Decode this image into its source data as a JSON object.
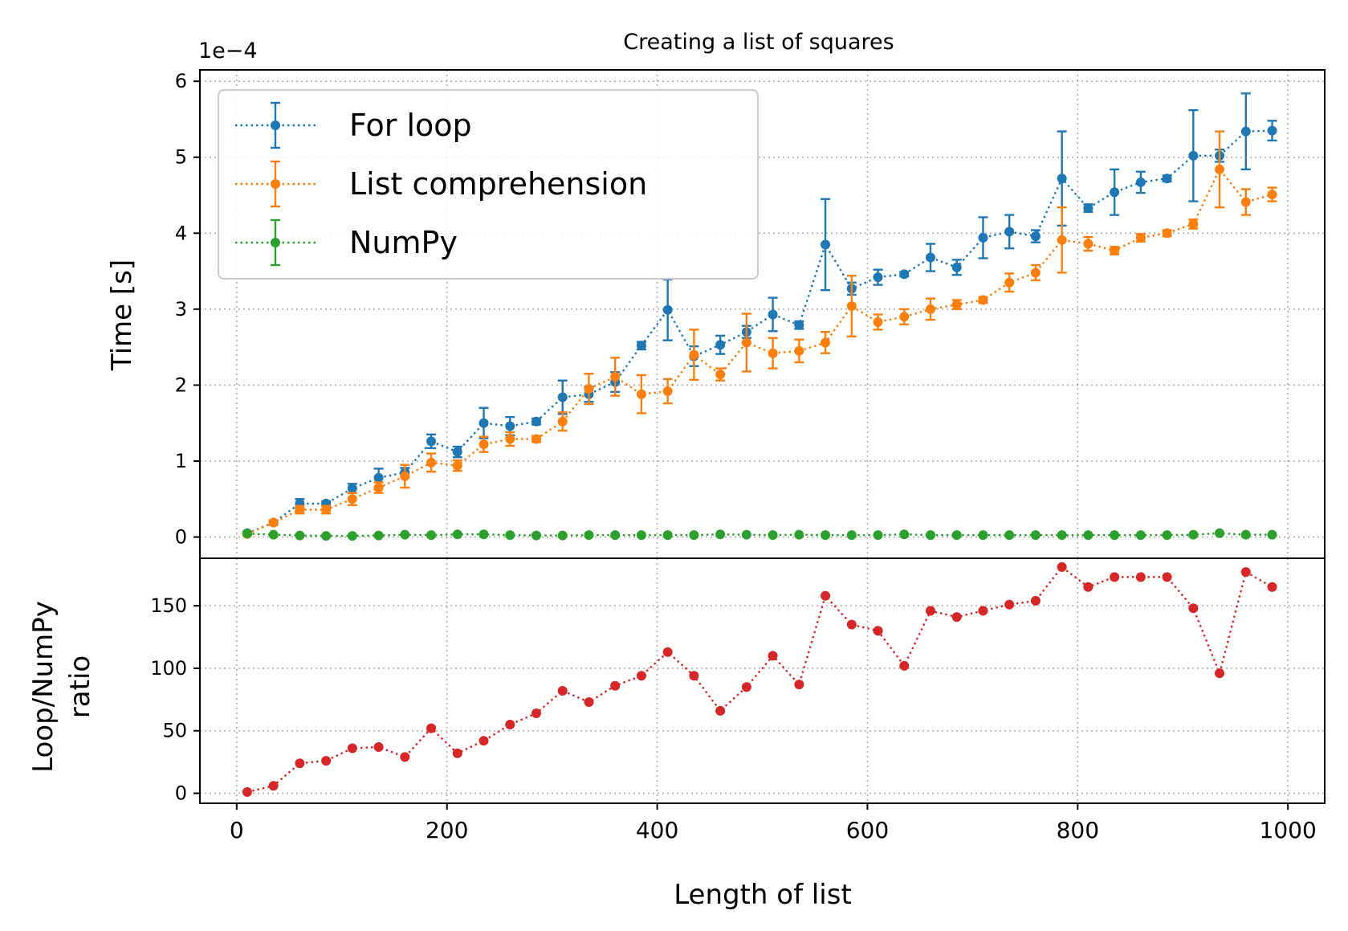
{
  "chart_data": [
    {
      "type": "line",
      "title": "Creating a list of squares",
      "ylabel": "Time [s]",
      "y_offset_label": "1e−4",
      "y_scale_exponent": -4,
      "xlim": [
        -35,
        1035
      ],
      "ylim": [
        -0.28,
        6.15
      ],
      "grid": true,
      "linestyle": "dotted",
      "legend_placement": "top-left",
      "x": [
        10,
        35,
        60,
        85,
        110,
        135,
        160,
        185,
        210,
        235,
        260,
        285,
        310,
        335,
        360,
        385,
        410,
        435,
        460,
        485,
        510,
        535,
        560,
        585,
        610,
        635,
        660,
        685,
        710,
        735,
        760,
        785,
        810,
        835,
        860,
        885,
        910,
        935,
        960,
        985
      ],
      "yticks": [
        "0",
        "1",
        "2",
        "3",
        "4",
        "5",
        "6"
      ],
      "series": [
        {
          "name": "For loop",
          "color": "#1f77b4",
          "values": [
            0.05,
            0.19,
            0.44,
            0.44,
            0.64,
            0.78,
            0.85,
            1.26,
            1.12,
            1.5,
            1.46,
            1.52,
            1.84,
            1.88,
            2.04,
            2.52,
            2.99,
            2.38,
            2.53,
            2.7,
            2.93,
            2.79,
            3.85,
            3.27,
            3.42,
            3.46,
            3.68,
            3.55,
            3.94,
            4.02,
            3.96,
            4.72,
            4.33,
            4.54,
            4.67,
            4.72,
            5.02,
            5.02,
            5.34,
            5.35
          ],
          "errors": [
            0.02,
            0.03,
            0.06,
            0.03,
            0.06,
            0.12,
            0.06,
            0.09,
            0.07,
            0.2,
            0.12,
            0.04,
            0.22,
            0.1,
            0.13,
            0.05,
            0.4,
            0.13,
            0.12,
            0.08,
            0.22,
            0.05,
            0.6,
            0.08,
            0.1,
            0.03,
            0.18,
            0.1,
            0.27,
            0.22,
            0.08,
            0.62,
            0.05,
            0.3,
            0.14,
            0.04,
            0.6,
            0.08,
            0.5,
            0.13
          ]
        },
        {
          "name": "List comprehension",
          "color": "#ff7f0e",
          "values": [
            0.04,
            0.19,
            0.36,
            0.36,
            0.5,
            0.65,
            0.8,
            0.98,
            0.94,
            1.22,
            1.29,
            1.29,
            1.52,
            1.95,
            2.11,
            1.88,
            1.92,
            2.4,
            2.14,
            2.56,
            2.42,
            2.45,
            2.56,
            3.04,
            2.83,
            2.9,
            3.0,
            3.06,
            3.12,
            3.35,
            3.48,
            3.91,
            3.86,
            3.77,
            3.94,
            4.0,
            4.12,
            4.84,
            4.41,
            4.51
          ],
          "errors": [
            0.02,
            0.03,
            0.05,
            0.05,
            0.08,
            0.07,
            0.15,
            0.12,
            0.07,
            0.1,
            0.09,
            0.04,
            0.12,
            0.2,
            0.25,
            0.25,
            0.16,
            0.33,
            0.08,
            0.38,
            0.2,
            0.15,
            0.14,
            0.4,
            0.1,
            0.1,
            0.14,
            0.06,
            0.04,
            0.12,
            0.1,
            0.43,
            0.09,
            0.05,
            0.05,
            0.04,
            0.06,
            0.5,
            0.17,
            0.09
          ]
        },
        {
          "name": "NumPy",
          "color": "#2ca02c",
          "values": [
            0.045,
            0.03,
            0.02,
            0.015,
            0.015,
            0.02,
            0.03,
            0.025,
            0.035,
            0.035,
            0.025,
            0.02,
            0.02,
            0.025,
            0.025,
            0.025,
            0.025,
            0.025,
            0.035,
            0.03,
            0.025,
            0.03,
            0.025,
            0.025,
            0.025,
            0.035,
            0.025,
            0.025,
            0.025,
            0.025,
            0.025,
            0.025,
            0.025,
            0.025,
            0.025,
            0.025,
            0.03,
            0.05,
            0.03,
            0.03
          ],
          "errors": [
            0.01,
            0.005,
            0.005,
            0.005,
            0.005,
            0.005,
            0.005,
            0.005,
            0.005,
            0.005,
            0.005,
            0.005,
            0.005,
            0.005,
            0.005,
            0.005,
            0.005,
            0.005,
            0.005,
            0.005,
            0.005,
            0.005,
            0.005,
            0.005,
            0.005,
            0.005,
            0.005,
            0.005,
            0.005,
            0.005,
            0.005,
            0.005,
            0.005,
            0.005,
            0.005,
            0.005,
            0.005,
            0.01,
            0.005,
            0.005
          ]
        }
      ]
    },
    {
      "type": "line",
      "ylabel_line1": "Loop/NumPy",
      "ylabel_line2": "ratio",
      "xlabel": "Length of list",
      "xlim": [
        -35,
        1035
      ],
      "ylim": [
        -8,
        188
      ],
      "grid": true,
      "linestyle": "dotted",
      "x": [
        10,
        35,
        60,
        85,
        110,
        135,
        160,
        185,
        210,
        235,
        260,
        285,
        310,
        335,
        360,
        385,
        410,
        435,
        460,
        485,
        510,
        535,
        560,
        585,
        610,
        635,
        660,
        685,
        710,
        735,
        760,
        785,
        810,
        835,
        860,
        885,
        910,
        935,
        960,
        985
      ],
      "xticks": [
        "0",
        "200",
        "400",
        "600",
        "800",
        "1000"
      ],
      "yticks": [
        "0",
        "50",
        "100",
        "150"
      ],
      "series": [
        {
          "color": "#d62728",
          "values": [
            1,
            6,
            24,
            26,
            36,
            37,
            29,
            52,
            32,
            42,
            55,
            64,
            82,
            73,
            86,
            94,
            113,
            94,
            66,
            85,
            110,
            87,
            158,
            135,
            130,
            102,
            146,
            141,
            146,
            151,
            154,
            181,
            165,
            173,
            173,
            173,
            148,
            96,
            177,
            165
          ]
        }
      ]
    }
  ]
}
